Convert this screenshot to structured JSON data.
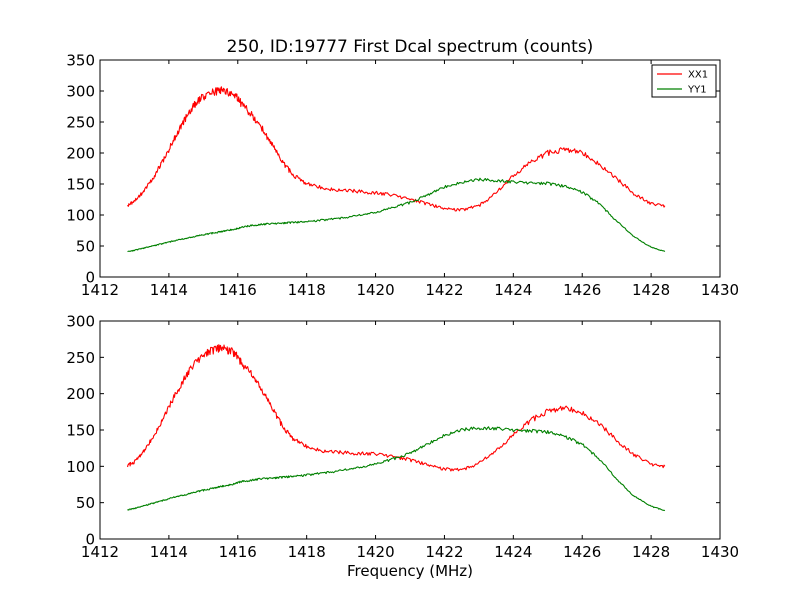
{
  "figure": {
    "title": "250, ID:19777 First Dcal spectrum (counts)"
  },
  "chart_data": [
    {
      "type": "line",
      "title": "250, ID:19777 First Dcal spectrum (counts)",
      "xlabel": "",
      "ylabel": "",
      "xlim": [
        1412,
        1430
      ],
      "ylim": [
        0,
        350
      ],
      "xticks": [
        "1412",
        "1414",
        "1416",
        "1418",
        "1420",
        "1422",
        "1424",
        "1426",
        "1428",
        "1430"
      ],
      "yticks": [
        "0",
        "50",
        "100",
        "150",
        "200",
        "250",
        "300",
        "350"
      ],
      "grid": false,
      "legend": {
        "position": "top-right",
        "entries": [
          "XX1",
          "YY1"
        ]
      },
      "x": [
        1412.8,
        1413.0,
        1413.3,
        1413.6,
        1413.9,
        1414.2,
        1414.5,
        1414.8,
        1415.1,
        1415.4,
        1415.6,
        1415.9,
        1416.1,
        1416.4,
        1416.7,
        1417.0,
        1417.3,
        1417.6,
        1418.0,
        1418.5,
        1419.0,
        1419.5,
        1420.0,
        1420.5,
        1421.0,
        1421.5,
        1422.0,
        1422.5,
        1423.0,
        1423.5,
        1424.0,
        1424.5,
        1425.0,
        1425.5,
        1426.0,
        1426.5,
        1427.0,
        1427.5,
        1428.0,
        1428.4
      ],
      "series": [
        {
          "name": "XX1",
          "color": "#ff0000",
          "values": [
            115,
            122,
            140,
            165,
            195,
            228,
            258,
            282,
            295,
            300,
            301,
            295,
            280,
            262,
            240,
            213,
            185,
            165,
            150,
            143,
            140,
            138,
            136,
            132,
            126,
            118,
            110,
            108,
            115,
            135,
            163,
            185,
            200,
            206,
            200,
            182,
            158,
            135,
            118,
            115
          ]
        },
        {
          "name": "YY1",
          "color": "#008000",
          "values": [
            41,
            43,
            47,
            51,
            55,
            59,
            62,
            66,
            69,
            72,
            74,
            77,
            80,
            83,
            85,
            86,
            87,
            88,
            89,
            92,
            95,
            99,
            104,
            112,
            120,
            132,
            145,
            153,
            157,
            156,
            153,
            152,
            151,
            146,
            137,
            118,
            90,
            65,
            48,
            41
          ]
        }
      ]
    },
    {
      "type": "line",
      "title": "",
      "xlabel": "Frequency (MHz)",
      "ylabel": "",
      "xlim": [
        1412,
        1430
      ],
      "ylim": [
        0,
        300
      ],
      "xticks": [
        "1412",
        "1414",
        "1416",
        "1418",
        "1420",
        "1422",
        "1424",
        "1426",
        "1428",
        "1430"
      ],
      "yticks": [
        "0",
        "50",
        "100",
        "150",
        "200",
        "250",
        "300"
      ],
      "grid": false,
      "x": [
        1412.8,
        1413.0,
        1413.3,
        1413.6,
        1413.9,
        1414.2,
        1414.5,
        1414.8,
        1415.1,
        1415.4,
        1415.6,
        1415.9,
        1416.1,
        1416.4,
        1416.7,
        1417.0,
        1417.3,
        1417.6,
        1418.0,
        1418.5,
        1419.0,
        1419.5,
        1420.0,
        1420.5,
        1421.0,
        1421.5,
        1422.0,
        1422.5,
        1423.0,
        1423.5,
        1424.0,
        1424.5,
        1425.0,
        1425.5,
        1426.0,
        1426.5,
        1427.0,
        1427.5,
        1428.0,
        1428.4
      ],
      "series": [
        {
          "name": "XX1",
          "color": "#ff0000",
          "values": [
            101,
            106,
            122,
            145,
            172,
            200,
            225,
            245,
            257,
            262,
            262,
            256,
            243,
            226,
            205,
            180,
            155,
            138,
            127,
            121,
            119,
            118,
            117,
            114,
            109,
            102,
            96,
            95,
            104,
            121,
            143,
            163,
            176,
            180,
            174,
            158,
            136,
            116,
            103,
            100
          ]
        },
        {
          "name": "YY1",
          "color": "#008000",
          "values": [
            40,
            42,
            46,
            50,
            54,
            58,
            61,
            65,
            68,
            71,
            73,
            76,
            79,
            81,
            83,
            84,
            85,
            86,
            88,
            91,
            94,
            98,
            103,
            110,
            118,
            130,
            143,
            150,
            153,
            152,
            150,
            149,
            147,
            141,
            130,
            110,
            82,
            59,
            45,
            39
          ]
        }
      ]
    }
  ]
}
